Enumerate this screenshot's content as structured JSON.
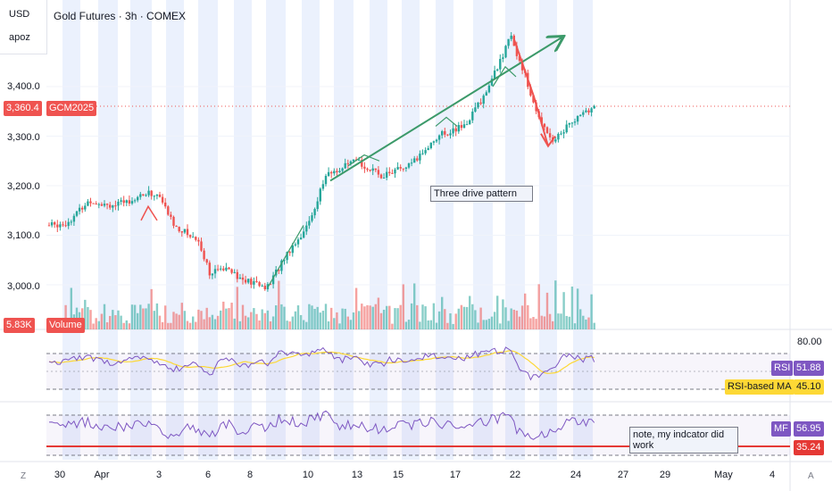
{
  "header": {
    "currency": "USD",
    "user": "apoz",
    "title": "Gold Futures · 3h · COMEX"
  },
  "colors": {
    "up": "#26a69a",
    "down": "#ef5350",
    "rsi": "#7e57c2",
    "rsi_ma": "#fdd835",
    "drive": "#3c9a6a",
    "ref_line": "#e53935",
    "band": "#dbe6fb"
  },
  "price_axis": {
    "ticks": [
      "3,400.0",
      "3,300.0",
      "3,200.0",
      "3,100.0",
      "3,000.0"
    ],
    "tick_values": [
      3400,
      3300,
      3200,
      3100,
      3000
    ]
  },
  "last_price": {
    "value": "3,360.4",
    "symbol": "GCM2025",
    "price": 3360.4
  },
  "volume_label": {
    "value": "5.83K",
    "name": "Volume"
  },
  "rsi_panel": {
    "level": "80.00",
    "rsi_name": "RSI",
    "rsi_value": "51.88",
    "ma_name": "RSI-based MA",
    "ma_value": "45.10"
  },
  "mf_panel": {
    "name": "MF",
    "value": "56.95",
    "ref_value": "35.24"
  },
  "annotations": {
    "pattern": "Three drive pattern",
    "note": "note, my indcator did work"
  },
  "x_axis": {
    "labels": [
      "30",
      "Apr",
      "3",
      "6",
      "8",
      "10",
      "13",
      "15",
      "17",
      "22",
      "24",
      "27",
      "29",
      "May",
      "4"
    ]
  },
  "corner_buttons": {
    "left": "Z",
    "right": "A"
  },
  "chart_data": {
    "type": "line",
    "title": "Gold Futures · 3h · COMEX",
    "symbol": "GCM2025",
    "x": [
      "Mar 30",
      "Apr 1",
      "Apr 3",
      "Apr 6",
      "Apr 8",
      "Apr 10",
      "Apr 13",
      "Apr 15",
      "Apr 17",
      "Apr 22",
      "Apr 24",
      "Apr 25"
    ],
    "series": [
      {
        "name": "GCM2025",
        "values": [
          3120,
          3170,
          3180,
          3050,
          3000,
          3120,
          3250,
          3220,
          3320,
          3500,
          3290,
          3360
        ]
      }
    ],
    "ylim": [
      2950,
      3520
    ],
    "last_price": 3360.4,
    "volume_last": "5.83K",
    "rsi": {
      "value": 51.88,
      "ma": 45.1,
      "upper_level": 80.0
    },
    "mf": {
      "value": 56.95,
      "reference": 35.24
    },
    "annotations": [
      "Three drive pattern",
      "note, my indcator did work"
    ]
  }
}
